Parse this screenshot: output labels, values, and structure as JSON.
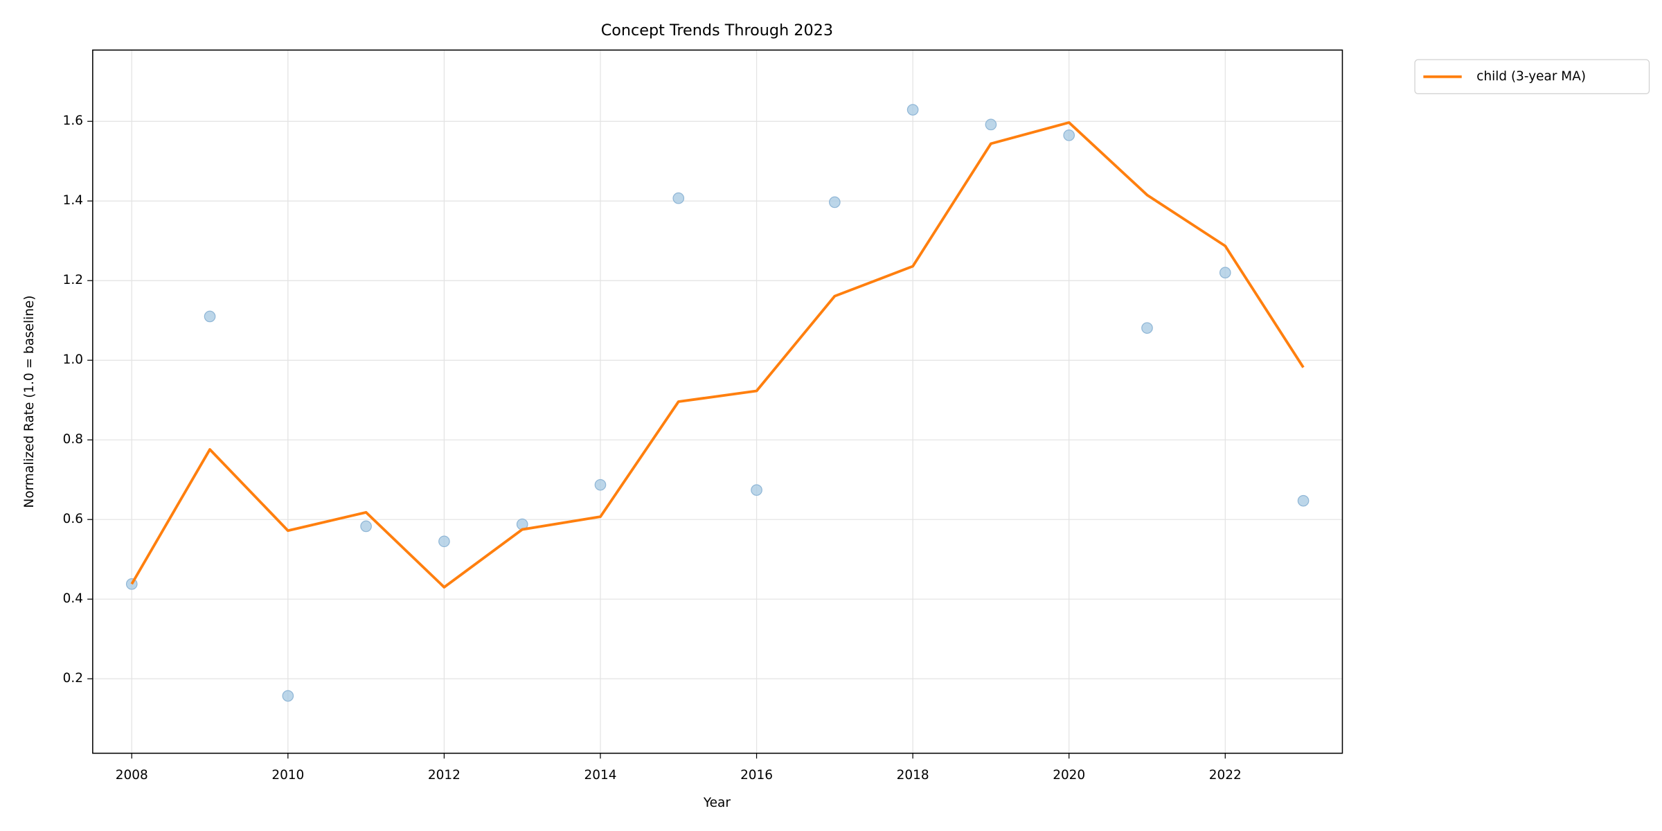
{
  "chart_data": {
    "type": "line",
    "title": "Concept Trends Through 2023",
    "xlabel": "Year",
    "ylabel": "Normalized Rate (1.0 = baseline)",
    "x": [
      2008,
      2009,
      2010,
      2011,
      2012,
      2013,
      2014,
      2015,
      2016,
      2017,
      2018,
      2019,
      2020,
      2021,
      2022,
      2023
    ],
    "series": [
      {
        "type": "scatter",
        "color": "#a6c8e2",
        "values": [
          0.438,
          1.11,
          0.157,
          0.583,
          0.545,
          0.588,
          0.687,
          1.407,
          0.674,
          1.397,
          1.629,
          1.592,
          1.565,
          1.081,
          1.22,
          0.647
        ]
      },
      {
        "name": "child (3-year MA)",
        "type": "line",
        "color": "#ff7f0e",
        "values": [
          0.438,
          0.776,
          0.572,
          0.618,
          0.43,
          0.575,
          0.607,
          0.896,
          0.923,
          1.161,
          1.236,
          1.544,
          1.597,
          1.415,
          1.287,
          0.982
        ]
      }
    ],
    "xlim": [
      2007.5,
      2023.5
    ],
    "ylim": [
      0.013,
      1.779
    ],
    "xticks": [
      2008,
      2010,
      2012,
      2014,
      2016,
      2018,
      2020,
      2022
    ],
    "yticks": [
      0.2,
      0.4,
      0.6,
      0.8,
      {
        "value": 1,
        "label": "1.0"
      },
      1.2,
      1.4,
      1.6
    ],
    "grid": true,
    "legend": "outside upper right"
  }
}
